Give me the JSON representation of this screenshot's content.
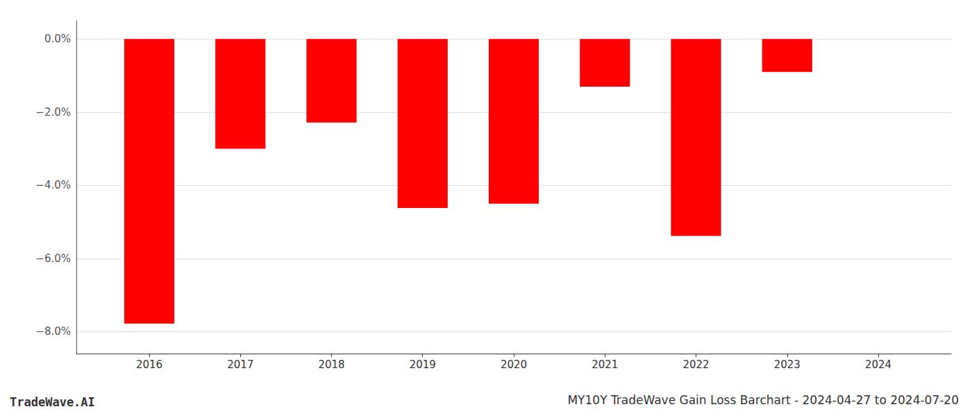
{
  "chart_data": {
    "type": "bar",
    "title": "MY10Y TradeWave Gain Loss Barchart - 2024-04-27 to 2024-07-20",
    "annotations": [
      "TradeWave.AI"
    ],
    "x": [
      2016,
      2017,
      2018,
      2019,
      2020,
      2021,
      2022,
      2023,
      2024
    ],
    "values": [
      -7.78,
      -3.0,
      -2.28,
      -4.62,
      -4.5,
      -1.3,
      -5.38,
      -0.9,
      0.0
    ],
    "color": "#ff0000",
    "xlim": [
      2015.2,
      2024.8
    ],
    "xticks": [
      2016,
      2017,
      2018,
      2019,
      2020,
      2021,
      2022,
      2023,
      2024
    ],
    "ylim": [
      -8.6,
      0.5
    ],
    "yticks": [
      {
        "value": 0.0,
        "label": "0.0%"
      },
      {
        "value": -2.0,
        "label": "−2.0%"
      },
      {
        "value": -4.0,
        "label": "−4.0%"
      },
      {
        "value": -6.0,
        "label": "−6.0%"
      },
      {
        "value": -8.0,
        "label": "−8.0%"
      }
    ],
    "grid": true
  }
}
